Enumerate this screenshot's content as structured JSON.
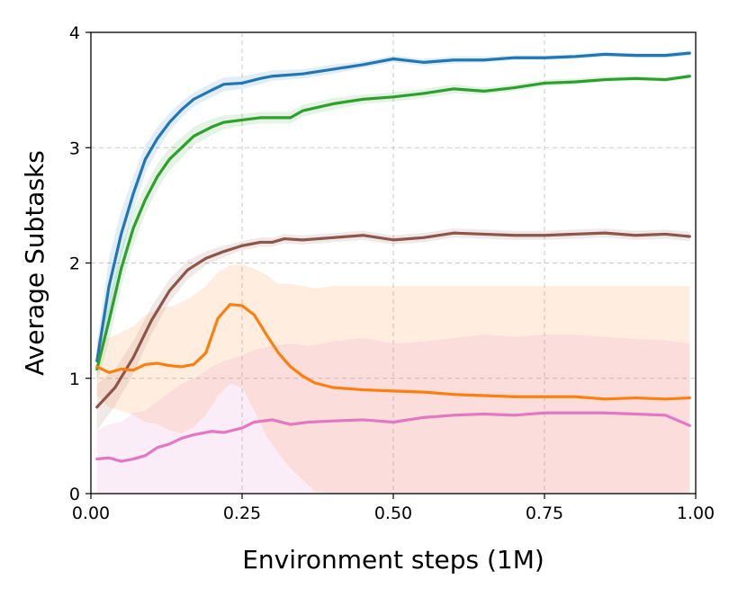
{
  "chart_data": {
    "type": "line",
    "title": "",
    "xlabel": "Environment steps (1M)",
    "ylabel": "Average Subtasks",
    "xlim": [
      0.0,
      1.0
    ],
    "ylim": [
      0,
      4
    ],
    "xticks": [
      0.0,
      0.25,
      0.5,
      0.75,
      1.0
    ],
    "xtick_labels": [
      "0.00",
      "0.25",
      "0.50",
      "0.75",
      "1.00"
    ],
    "yticks": [
      0,
      1,
      2,
      3,
      4
    ],
    "ytick_labels": [
      "0",
      "1",
      "2",
      "3",
      "4"
    ],
    "grid": true,
    "legend": "none",
    "series": [
      {
        "color": "#1f77b4",
        "x": [
          0.01,
          0.03,
          0.05,
          0.07,
          0.09,
          0.11,
          0.13,
          0.15,
          0.17,
          0.2,
          0.22,
          0.25,
          0.28,
          0.3,
          0.35,
          0.4,
          0.45,
          0.5,
          0.55,
          0.6,
          0.65,
          0.7,
          0.75,
          0.8,
          0.85,
          0.9,
          0.95,
          0.99
        ],
        "y": [
          1.15,
          1.8,
          2.25,
          2.6,
          2.9,
          3.08,
          3.22,
          3.33,
          3.42,
          3.5,
          3.55,
          3.56,
          3.6,
          3.62,
          3.64,
          3.68,
          3.72,
          3.77,
          3.74,
          3.76,
          3.76,
          3.78,
          3.78,
          3.79,
          3.81,
          3.8,
          3.8,
          3.82
        ],
        "lower": [
          1.0,
          1.55,
          2.05,
          2.45,
          2.78,
          2.98,
          3.14,
          3.26,
          3.36,
          3.44,
          3.49,
          3.51,
          3.55,
          3.58,
          3.6,
          3.64,
          3.69,
          3.74,
          3.71,
          3.73,
          3.74,
          3.76,
          3.76,
          3.77,
          3.79,
          3.78,
          3.78,
          3.8
        ],
        "upper": [
          1.3,
          2.05,
          2.45,
          2.75,
          3.02,
          3.18,
          3.3,
          3.4,
          3.48,
          3.56,
          3.61,
          3.62,
          3.65,
          3.67,
          3.68,
          3.72,
          3.75,
          3.8,
          3.77,
          3.79,
          3.79,
          3.8,
          3.8,
          3.81,
          3.83,
          3.82,
          3.82,
          3.84
        ]
      },
      {
        "color": "#2ca02c",
        "x": [
          0.01,
          0.03,
          0.05,
          0.07,
          0.09,
          0.11,
          0.13,
          0.15,
          0.17,
          0.2,
          0.22,
          0.25,
          0.28,
          0.3,
          0.33,
          0.35,
          0.4,
          0.45,
          0.5,
          0.55,
          0.6,
          0.65,
          0.7,
          0.75,
          0.8,
          0.85,
          0.9,
          0.95,
          0.99
        ],
        "y": [
          1.08,
          1.5,
          1.95,
          2.3,
          2.55,
          2.75,
          2.9,
          3.0,
          3.1,
          3.18,
          3.22,
          3.24,
          3.26,
          3.26,
          3.26,
          3.32,
          3.38,
          3.42,
          3.44,
          3.47,
          3.51,
          3.49,
          3.52,
          3.56,
          3.57,
          3.59,
          3.6,
          3.59,
          3.62
        ],
        "lower": [
          0.95,
          1.32,
          1.78,
          2.15,
          2.43,
          2.64,
          2.8,
          2.91,
          3.02,
          3.11,
          3.16,
          3.19,
          3.21,
          3.21,
          3.21,
          3.27,
          3.33,
          3.38,
          3.4,
          3.43,
          3.47,
          3.46,
          3.49,
          3.53,
          3.55,
          3.57,
          3.58,
          3.57,
          3.6
        ],
        "upper": [
          1.2,
          1.68,
          2.12,
          2.45,
          2.67,
          2.86,
          3.0,
          3.09,
          3.18,
          3.25,
          3.28,
          3.29,
          3.31,
          3.31,
          3.31,
          3.37,
          3.43,
          3.46,
          3.48,
          3.51,
          3.55,
          3.52,
          3.55,
          3.59,
          3.6,
          3.62,
          3.62,
          3.61,
          3.64
        ]
      },
      {
        "color": "#8c564b",
        "x": [
          0.01,
          0.04,
          0.07,
          0.1,
          0.13,
          0.16,
          0.19,
          0.22,
          0.25,
          0.28,
          0.3,
          0.32,
          0.35,
          0.4,
          0.45,
          0.5,
          0.55,
          0.6,
          0.65,
          0.7,
          0.75,
          0.8,
          0.85,
          0.9,
          0.95,
          0.99
        ],
        "y": [
          0.75,
          0.92,
          1.18,
          1.5,
          1.76,
          1.94,
          2.04,
          2.1,
          2.15,
          2.18,
          2.18,
          2.21,
          2.2,
          2.22,
          2.24,
          2.2,
          2.22,
          2.26,
          2.25,
          2.24,
          2.24,
          2.25,
          2.26,
          2.24,
          2.25,
          2.23
        ],
        "lower": [
          0.55,
          0.76,
          1.04,
          1.38,
          1.66,
          1.86,
          1.98,
          2.05,
          2.11,
          2.14,
          2.14,
          2.17,
          2.16,
          2.18,
          2.2,
          2.16,
          2.18,
          2.22,
          2.21,
          2.2,
          2.2,
          2.21,
          2.22,
          2.2,
          2.21,
          2.19
        ],
        "upper": [
          0.95,
          1.08,
          1.32,
          1.62,
          1.86,
          2.02,
          2.1,
          2.15,
          2.19,
          2.22,
          2.22,
          2.25,
          2.24,
          2.26,
          2.28,
          2.24,
          2.26,
          2.3,
          2.29,
          2.28,
          2.28,
          2.29,
          2.3,
          2.28,
          2.29,
          2.27
        ]
      },
      {
        "color": "#ff7f0e",
        "x": [
          0.01,
          0.03,
          0.05,
          0.07,
          0.09,
          0.11,
          0.13,
          0.15,
          0.17,
          0.19,
          0.21,
          0.23,
          0.25,
          0.27,
          0.29,
          0.31,
          0.33,
          0.35,
          0.37,
          0.4,
          0.45,
          0.5,
          0.55,
          0.6,
          0.65,
          0.7,
          0.75,
          0.8,
          0.85,
          0.9,
          0.95,
          0.99
        ],
        "y": [
          1.1,
          1.05,
          1.08,
          1.07,
          1.12,
          1.13,
          1.11,
          1.1,
          1.12,
          1.22,
          1.52,
          1.64,
          1.63,
          1.55,
          1.38,
          1.22,
          1.1,
          1.02,
          0.96,
          0.92,
          0.9,
          0.89,
          0.88,
          0.86,
          0.85,
          0.84,
          0.84,
          0.84,
          0.82,
          0.83,
          0.82,
          0.83
        ],
        "lower": [
          0.85,
          0.75,
          0.72,
          0.68,
          0.62,
          0.6,
          0.55,
          0.52,
          0.58,
          0.68,
          0.85,
          0.95,
          0.92,
          0.72,
          0.5,
          0.35,
          0.22,
          0.12,
          0.02,
          0.0,
          0.0,
          0.0,
          0.0,
          0.0,
          0.0,
          0.0,
          0.0,
          0.0,
          0.0,
          0.0,
          0.0,
          0.0
        ],
        "upper": [
          1.35,
          1.35,
          1.4,
          1.45,
          1.55,
          1.6,
          1.62,
          1.66,
          1.72,
          1.8,
          1.92,
          1.98,
          1.99,
          1.95,
          1.9,
          1.82,
          1.82,
          1.8,
          1.78,
          1.8,
          1.8,
          1.8,
          1.8,
          1.8,
          1.8,
          1.8,
          1.8,
          1.8,
          1.8,
          1.8,
          1.8,
          1.8
        ]
      },
      {
        "color": "#e377c2",
        "x": [
          0.01,
          0.03,
          0.05,
          0.07,
          0.09,
          0.11,
          0.13,
          0.15,
          0.17,
          0.2,
          0.22,
          0.25,
          0.27,
          0.3,
          0.33,
          0.36,
          0.4,
          0.45,
          0.5,
          0.55,
          0.6,
          0.65,
          0.7,
          0.75,
          0.8,
          0.85,
          0.9,
          0.95,
          0.99
        ],
        "y": [
          0.3,
          0.31,
          0.28,
          0.3,
          0.33,
          0.4,
          0.43,
          0.48,
          0.51,
          0.54,
          0.53,
          0.57,
          0.62,
          0.64,
          0.6,
          0.62,
          0.63,
          0.64,
          0.62,
          0.66,
          0.68,
          0.69,
          0.68,
          0.7,
          0.7,
          0.7,
          0.69,
          0.68,
          0.59
        ],
        "lower": [
          0.0,
          0.0,
          0.0,
          0.0,
          0.0,
          0.0,
          0.0,
          0.0,
          0.0,
          0.0,
          0.0,
          0.0,
          0.0,
          0.0,
          0.0,
          0.0,
          0.0,
          0.0,
          0.0,
          0.0,
          0.0,
          0.0,
          0.0,
          0.0,
          0.0,
          0.0,
          0.0,
          0.0,
          0.0
        ],
        "upper": [
          0.55,
          0.6,
          0.62,
          0.7,
          0.72,
          0.8,
          0.88,
          0.95,
          1.0,
          1.1,
          1.15,
          1.2,
          1.25,
          1.28,
          1.3,
          1.28,
          1.32,
          1.35,
          1.3,
          1.32,
          1.35,
          1.38,
          1.36,
          1.38,
          1.38,
          1.36,
          1.34,
          1.33,
          1.3
        ]
      }
    ]
  }
}
